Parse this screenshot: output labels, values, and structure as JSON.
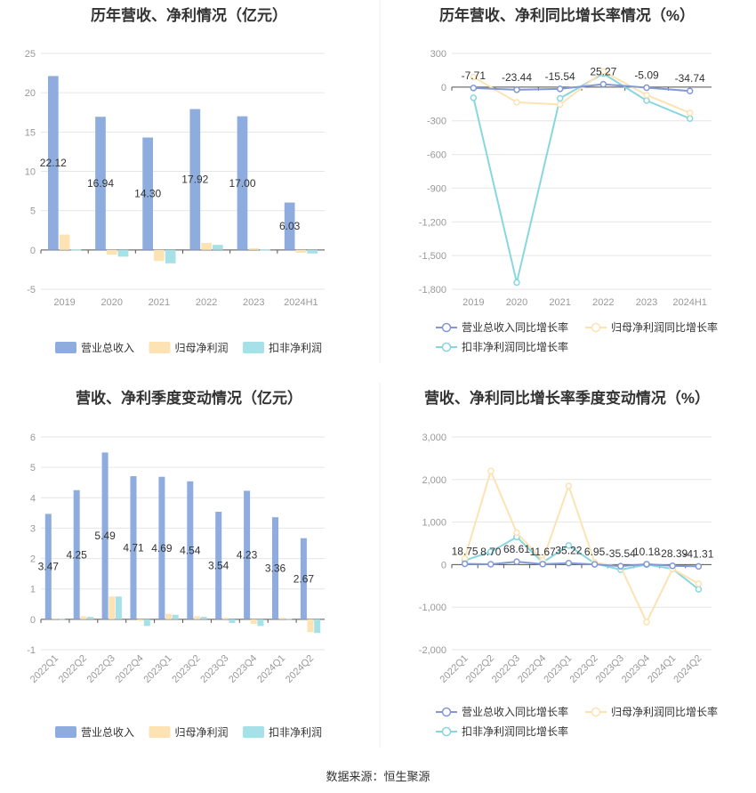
{
  "footer": {
    "source": "数据来源：恒生聚源"
  },
  "colors": {
    "revenue": "#8eadde",
    "net_profit": "#fde3b4",
    "deducted_profit": "#a5e1e7",
    "revenue_line": "#8399d6",
    "net_profit_line": "#fde3b4",
    "deducted_line": "#88d7e0",
    "grid": "#e6e6e6",
    "axis": "#555555",
    "tick": "#999999"
  },
  "chart_data": [
    {
      "id": "annual-amount",
      "type": "bar",
      "title": "历年营收、净利情况（亿元）",
      "categories": [
        "2019",
        "2020",
        "2021",
        "2022",
        "2023",
        "2024H1"
      ],
      "yticks": [
        "-5",
        "0",
        "5",
        "10",
        "15",
        "20",
        "25"
      ],
      "ylim": [
        -5,
        25
      ],
      "series": [
        {
          "name": "营业总收入",
          "color": "#8eadde",
          "values": [
            22.12,
            16.94,
            14.3,
            17.92,
            17.0,
            6.03
          ],
          "labels": [
            "22.12",
            "16.94",
            "14.30",
            "17.92",
            "17.00",
            "6.03"
          ]
        },
        {
          "name": "归母净利润",
          "color": "#fde3b4",
          "values": [
            1.95,
            -0.6,
            -1.4,
            0.9,
            0.2,
            -0.35
          ]
        },
        {
          "name": "扣非净利润",
          "color": "#a5e1e7",
          "values": [
            0.05,
            -0.85,
            -1.7,
            0.65,
            0.05,
            -0.45
          ]
        }
      ],
      "grid": true,
      "legend": "bottom"
    },
    {
      "id": "annual-growth",
      "type": "line",
      "title": "历年营收、净利同比增长率情况（%）",
      "categories": [
        "2019",
        "2020",
        "2021",
        "2022",
        "2023",
        "2024H1"
      ],
      "yticks": [
        "-1,800",
        "-1,500",
        "-1,200",
        "-900",
        "-600",
        "-300",
        "0",
        "300"
      ],
      "ylim": [
        -1800,
        300
      ],
      "series": [
        {
          "name": "营业总收入同比增长率",
          "color": "#8399d6",
          "values": [
            -7.71,
            -23.44,
            -15.54,
            25.27,
            -5.09,
            -34.74
          ],
          "labels": [
            "-7.71",
            "-23.44",
            "-15.54",
            "25.27",
            "-5.09",
            "-34.74"
          ]
        },
        {
          "name": "归母净利润同比增长率",
          "color": "#fde3b4",
          "values": [
            90,
            -135,
            -155,
            140,
            -70,
            -230
          ]
        },
        {
          "name": "扣非净利润同比增长率",
          "color": "#88d7e0",
          "values": [
            -95,
            -1740,
            -100,
            120,
            -120,
            -280
          ]
        }
      ],
      "grid": true,
      "legend": "bottom"
    },
    {
      "id": "quarterly-amount",
      "type": "bar",
      "title": "营收、净利季度变动情况（亿元）",
      "categories": [
        "2022Q1",
        "2022Q2",
        "2022Q3",
        "2022Q4",
        "2023Q1",
        "2023Q2",
        "2023Q3",
        "2023Q4",
        "2024Q1",
        "2024Q2"
      ],
      "yticks": [
        "-1",
        "0",
        "1",
        "2",
        "3",
        "4",
        "5",
        "6"
      ],
      "ylim": [
        -1,
        6
      ],
      "series": [
        {
          "name": "营业总收入",
          "color": "#8eadde",
          "values": [
            3.47,
            4.25,
            5.49,
            4.71,
            4.69,
            4.54,
            3.54,
            4.23,
            3.36,
            2.67
          ],
          "labels": [
            "3.47",
            "4.25",
            "5.49",
            "4.71",
            "4.69",
            "4.54",
            "3.54",
            "4.23",
            "3.36",
            "2.67"
          ]
        },
        {
          "name": "归母净利润",
          "color": "#fde3b4",
          "values": [
            0.03,
            0.1,
            0.75,
            -0.05,
            0.18,
            0.1,
            0.05,
            -0.15,
            0.05,
            -0.42
          ]
        },
        {
          "name": "扣非净利润",
          "color": "#a5e1e7",
          "values": [
            0.02,
            0.08,
            0.75,
            -0.22,
            0.15,
            0.08,
            -0.12,
            -0.22,
            0.02,
            -0.45
          ]
        }
      ],
      "grid": true,
      "legend": "bottom"
    },
    {
      "id": "quarterly-growth",
      "type": "line",
      "title": "营收、净利同比增长率季度变动情况（%）",
      "categories": [
        "2022Q1",
        "2022Q2",
        "2022Q3",
        "2022Q4",
        "2023Q1",
        "2023Q2",
        "2023Q3",
        "2023Q4",
        "2024Q1",
        "2024Q2"
      ],
      "yticks": [
        "-2,000",
        "-1,000",
        "0",
        "1,000",
        "2,000",
        "3,000"
      ],
      "ylim": [
        -2000,
        3000
      ],
      "series": [
        {
          "name": "营业总收入同比增长率",
          "color": "#8399d6",
          "values": [
            18.75,
            8.7,
            68.61,
            11.67,
            35.22,
            6.95,
            -35.54,
            10.18,
            -28.39,
            -41.31
          ],
          "labels": [
            "18.75",
            "8.70",
            "68.61",
            "11.67",
            "35.22",
            "6.95",
            "-35.54",
            "10.18",
            "-28.39",
            "-41.31"
          ]
        },
        {
          "name": "归母净利润同比增长率",
          "color": "#fde3b4",
          "values": [
            150,
            2200,
            750,
            100,
            1850,
            50,
            -50,
            -1350,
            -100,
            -450
          ]
        },
        {
          "name": "扣非净利润同比增长率",
          "color": "#88d7e0",
          "values": [
            100,
            300,
            650,
            50,
            450,
            30,
            -120,
            0,
            -100,
            -580
          ]
        }
      ],
      "grid": true,
      "legend": "bottom"
    }
  ]
}
